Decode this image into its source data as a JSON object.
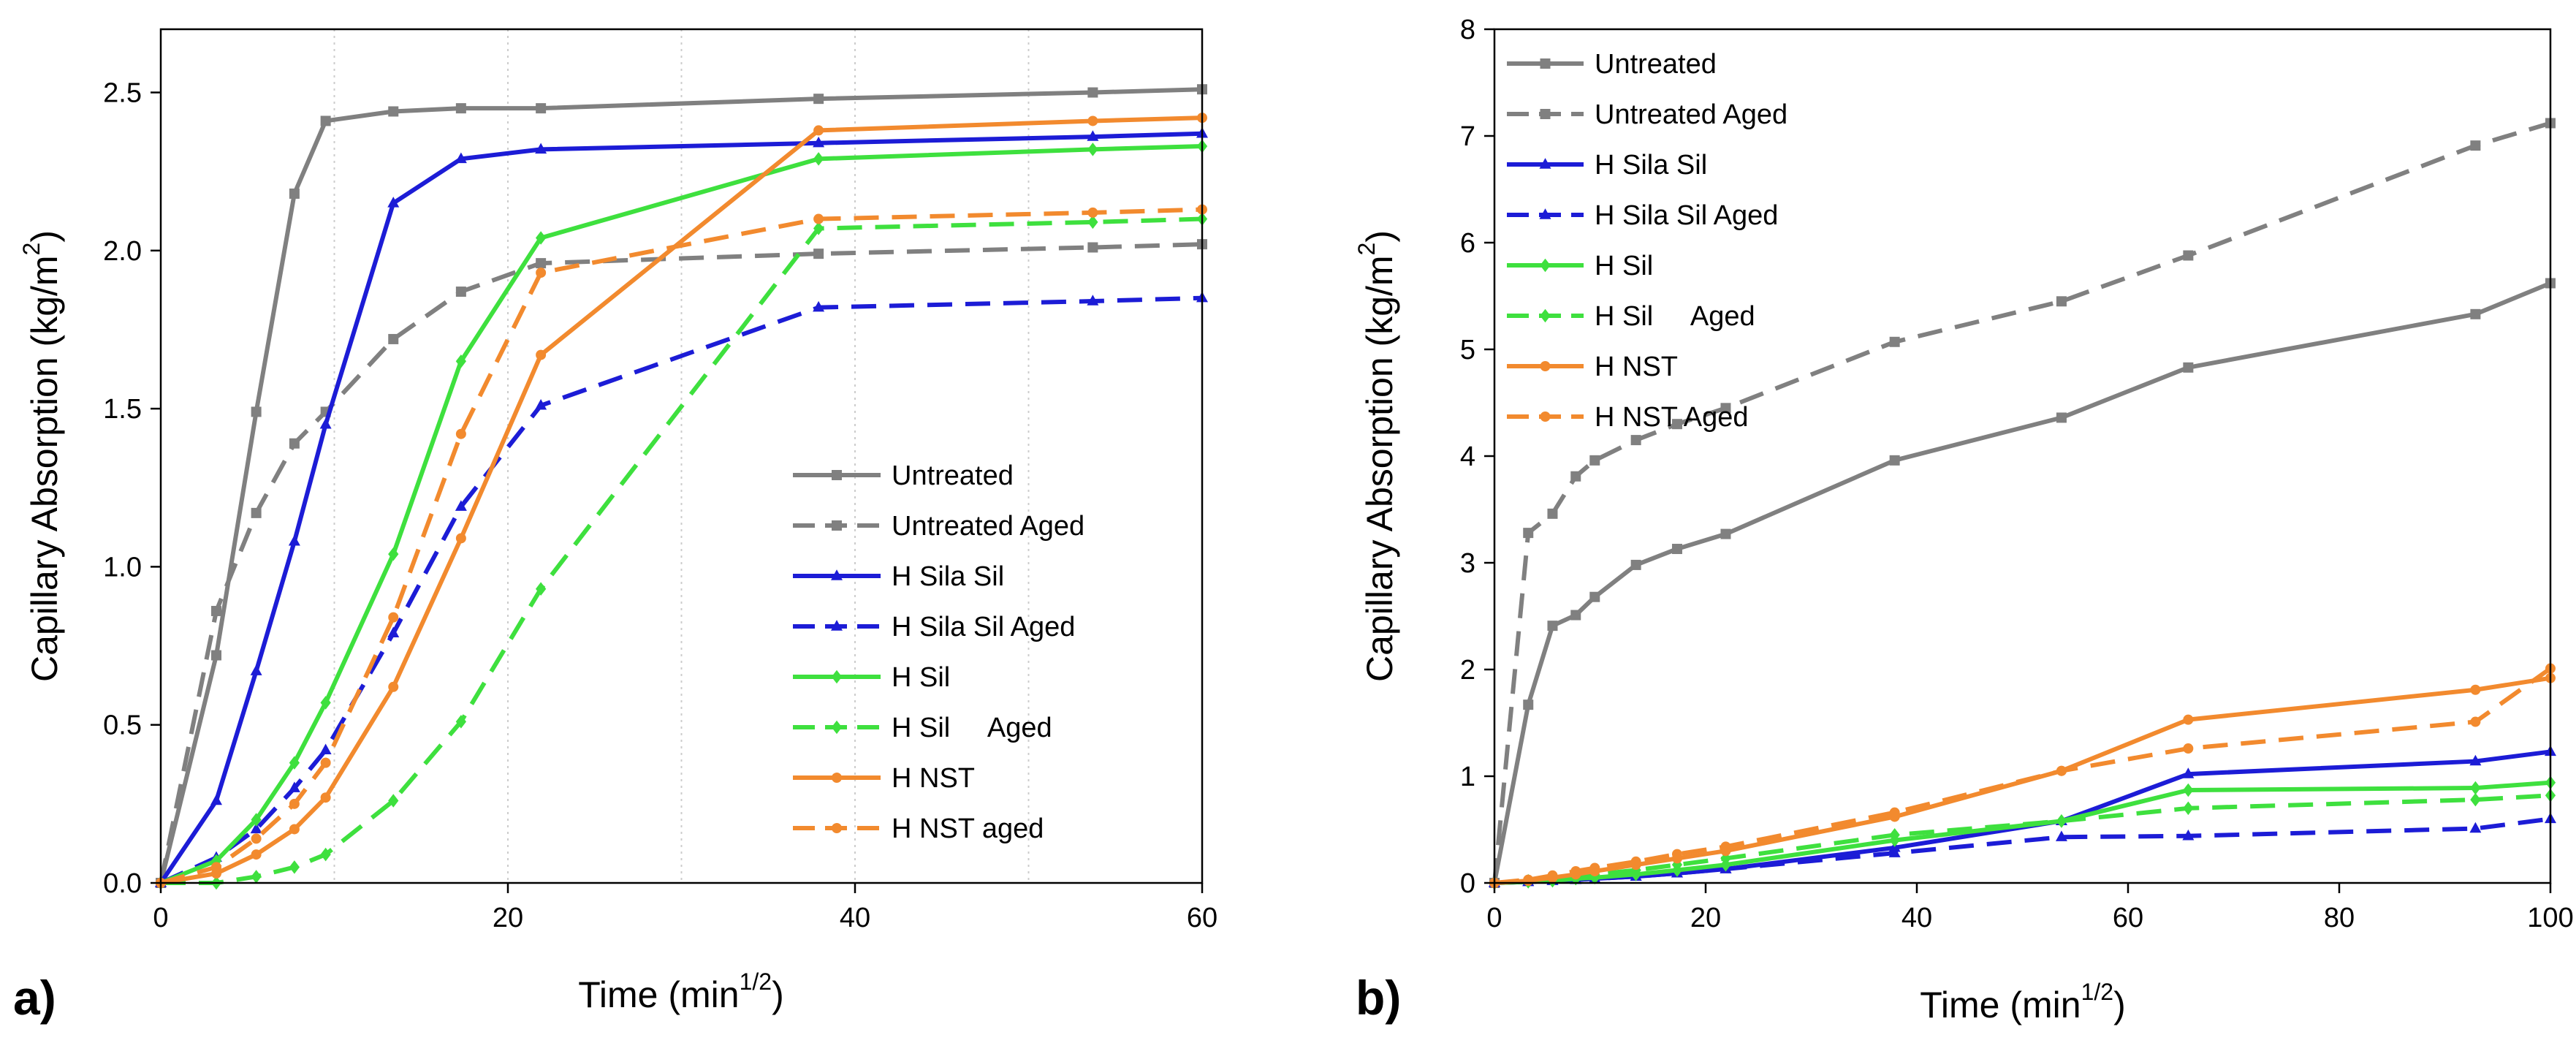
{
  "chart_data": [
    {
      "type": "line",
      "panel_label": "a)",
      "xlabel": "Time (min",
      "xlabel_sup": "1/2",
      "xlabel_end": ")",
      "ylabel": "Capillary Absorption (kg/m",
      "ylabel_sup": "2",
      "ylabel_end": ")",
      "xlim": [
        0,
        60
      ],
      "ylim": [
        0,
        2.7
      ],
      "xticks": [
        0,
        20,
        40,
        60
      ],
      "xtick_labels": [
        "0",
        "20",
        "40",
        "60"
      ],
      "yticks": [
        0,
        0.5,
        1.0,
        1.5,
        2.0,
        2.5
      ],
      "ytick_labels": [
        "0.0",
        "0.5",
        "1.0",
        "1.5",
        "2.0",
        "2.5"
      ],
      "grid": "vertical dotted",
      "legend_position": "bottom-right",
      "series": [
        {
          "name": "Untreated",
          "color": "#808080",
          "dash": "solid",
          "marker": "square",
          "x": [
            0,
            3.2,
            5.5,
            7.7,
            9.5,
            13.4,
            17.3,
            21.9,
            37.9,
            53.7,
            60
          ],
          "y": [
            0,
            0.72,
            1.49,
            2.18,
            2.41,
            2.44,
            2.45,
            2.45,
            2.48,
            2.5,
            2.51
          ]
        },
        {
          "name": "Untreated Aged",
          "color": "#808080",
          "dash": "dashed",
          "marker": "square",
          "x": [
            0,
            3.2,
            5.5,
            7.7,
            9.5,
            13.4,
            17.3,
            21.9,
            37.9,
            53.7,
            60
          ],
          "y": [
            0,
            0.86,
            1.17,
            1.39,
            1.49,
            1.72,
            1.87,
            1.96,
            1.99,
            2.01,
            2.02
          ]
        },
        {
          "name": "H Sila Sil",
          "color": "#1c1cd6",
          "dash": "solid",
          "marker": "triangle",
          "x": [
            0,
            3.2,
            5.5,
            7.7,
            9.5,
            13.4,
            17.3,
            21.9,
            37.9,
            53.7,
            60
          ],
          "y": [
            0,
            0.26,
            0.67,
            1.08,
            1.45,
            2.15,
            2.29,
            2.32,
            2.34,
            2.36,
            2.37
          ]
        },
        {
          "name": "H Sila Sil Aged",
          "color": "#1c1cd6",
          "dash": "dashed",
          "marker": "triangle",
          "x": [
            0,
            3.2,
            5.5,
            7.7,
            9.5,
            13.4,
            17.3,
            21.9,
            37.9,
            53.7,
            60
          ],
          "y": [
            0,
            0.08,
            0.17,
            0.3,
            0.42,
            0.79,
            1.19,
            1.51,
            1.82,
            1.84,
            1.85
          ]
        },
        {
          "name": "H Sil",
          "color": "#3ee03e",
          "dash": "solid",
          "marker": "diamond",
          "x": [
            0,
            3.2,
            5.5,
            7.7,
            9.5,
            13.4,
            17.3,
            21.9,
            37.9,
            53.7,
            60
          ],
          "y": [
            0,
            0.07,
            0.2,
            0.38,
            0.57,
            1.04,
            1.65,
            2.04,
            2.29,
            2.32,
            2.33
          ]
        },
        {
          "name": "H Sil     Aged",
          "color": "#3ee03e",
          "dash": "dashed",
          "marker": "diamond",
          "x": [
            0,
            3.2,
            5.5,
            7.7,
            9.5,
            13.4,
            17.3,
            21.9,
            37.9,
            53.7,
            60
          ],
          "y": [
            0,
            0.0,
            0.02,
            0.05,
            0.09,
            0.26,
            0.51,
            0.93,
            2.07,
            2.09,
            2.1
          ]
        },
        {
          "name": "H NST",
          "color": "#f28a2e",
          "dash": "solid",
          "marker": "circle",
          "x": [
            0,
            3.2,
            5.5,
            7.7,
            9.5,
            13.4,
            17.3,
            21.9,
            37.9,
            53.7,
            60
          ],
          "y": [
            0,
            0.03,
            0.09,
            0.17,
            0.27,
            0.62,
            1.09,
            1.67,
            2.38,
            2.41,
            2.42
          ]
        },
        {
          "name": "H NST aged",
          "color": "#f28a2e",
          "dash": "dashed",
          "marker": "circle",
          "x": [
            0,
            3.2,
            5.5,
            7.7,
            9.5,
            13.4,
            17.3,
            21.9,
            37.9,
            53.7,
            60
          ],
          "y": [
            0,
            0.05,
            0.14,
            0.25,
            0.38,
            0.84,
            1.42,
            1.93,
            2.1,
            2.12,
            2.13
          ]
        }
      ]
    },
    {
      "type": "line",
      "panel_label": "b)",
      "xlabel": "Time (min",
      "xlabel_sup": "1/2",
      "xlabel_end": ")",
      "ylabel": "Capillary Absorption (kg/m",
      "ylabel_sup": "2",
      "ylabel_end": ")",
      "xlim": [
        0,
        100
      ],
      "ylim": [
        0,
        8
      ],
      "xticks": [
        0,
        20,
        40,
        60,
        80,
        100
      ],
      "xtick_labels": [
        "0",
        "20",
        "40",
        "60",
        "80",
        "100"
      ],
      "yticks": [
        0,
        1,
        2,
        3,
        4,
        5,
        6,
        7,
        8
      ],
      "ytick_labels": [
        "0",
        "1",
        "2",
        "3",
        "4",
        "5",
        "6",
        "7",
        "8"
      ],
      "grid": "none",
      "legend_position": "top-left",
      "series": [
        {
          "name": "Untreated",
          "color": "#808080",
          "dash": "solid",
          "marker": "square",
          "x": [
            0,
            3.2,
            5.5,
            7.7,
            9.5,
            13.4,
            17.3,
            21.9,
            37.9,
            53.7,
            65.7,
            92.9,
            100
          ],
          "y": [
            0,
            1.67,
            2.41,
            2.51,
            2.68,
            2.98,
            3.13,
            3.27,
            3.96,
            4.36,
            4.83,
            5.33,
            5.62
          ]
        },
        {
          "name": "Untreated Aged",
          "color": "#808080",
          "dash": "dashed",
          "marker": "square",
          "x": [
            0,
            3.2,
            5.5,
            7.7,
            9.5,
            13.4,
            17.3,
            21.9,
            37.9,
            53.7,
            65.7,
            92.9,
            100
          ],
          "y": [
            0,
            3.28,
            3.46,
            3.81,
            3.96,
            4.15,
            4.3,
            4.45,
            5.07,
            5.45,
            5.88,
            6.91,
            7.12
          ]
        },
        {
          "name": "H Sila Sil",
          "color": "#1c1cd6",
          "dash": "solid",
          "marker": "triangle",
          "x": [
            0,
            3.2,
            5.5,
            7.7,
            9.5,
            13.4,
            17.3,
            21.9,
            37.9,
            53.7,
            65.7,
            92.9,
            100
          ],
          "y": [
            0,
            0.01,
            0.02,
            0.03,
            0.04,
            0.06,
            0.09,
            0.13,
            0.33,
            0.58,
            1.02,
            1.14,
            1.23
          ]
        },
        {
          "name": "H Sila Sil Aged",
          "color": "#1c1cd6",
          "dash": "dashed",
          "marker": "triangle",
          "x": [
            0,
            3.2,
            5.5,
            7.7,
            9.5,
            13.4,
            17.3,
            21.9,
            37.9,
            53.7,
            65.7,
            92.9,
            100
          ],
          "y": [
            0,
            0.01,
            0.02,
            0.03,
            0.04,
            0.06,
            0.09,
            0.13,
            0.28,
            0.43,
            0.44,
            0.51,
            0.6
          ]
        },
        {
          "name": "H Sil",
          "color": "#3ee03e",
          "dash": "solid",
          "marker": "diamond",
          "x": [
            0,
            3.2,
            5.5,
            7.7,
            9.5,
            13.4,
            17.3,
            21.9,
            37.9,
            53.7,
            65.7,
            92.9,
            100
          ],
          "y": [
            0,
            0.01,
            0.02,
            0.04,
            0.05,
            0.08,
            0.12,
            0.17,
            0.4,
            0.58,
            0.87,
            0.89,
            0.94
          ]
        },
        {
          "name": "H Sil     Aged",
          "color": "#3ee03e",
          "dash": "dashed",
          "marker": "diamond",
          "x": [
            0,
            3.2,
            5.5,
            7.7,
            9.5,
            13.4,
            17.3,
            21.9,
            37.9,
            53.7,
            65.7,
            92.9,
            100
          ],
          "y": [
            0,
            0.02,
            0.04,
            0.06,
            0.08,
            0.12,
            0.17,
            0.23,
            0.45,
            0.58,
            0.7,
            0.78,
            0.82
          ]
        },
        {
          "name": "H NST",
          "color": "#f28a2e",
          "dash": "solid",
          "marker": "circle",
          "x": [
            0,
            3.2,
            5.5,
            7.7,
            9.5,
            13.4,
            17.3,
            21.9,
            37.9,
            53.7,
            65.7,
            92.9,
            100
          ],
          "y": [
            0,
            0.02,
            0.05,
            0.08,
            0.11,
            0.17,
            0.23,
            0.3,
            0.62,
            1.05,
            1.53,
            1.81,
            1.92
          ]
        },
        {
          "name": "H NST Aged",
          "color": "#f28a2e",
          "dash": "dashed",
          "marker": "circle",
          "x": [
            0,
            3.2,
            5.5,
            7.7,
            9.5,
            13.4,
            17.3,
            21.9,
            37.9,
            53.7,
            65.7,
            92.9,
            100
          ],
          "y": [
            0,
            0.03,
            0.07,
            0.11,
            0.14,
            0.2,
            0.27,
            0.34,
            0.66,
            1.05,
            1.26,
            1.51,
            2.01
          ]
        }
      ]
    }
  ]
}
